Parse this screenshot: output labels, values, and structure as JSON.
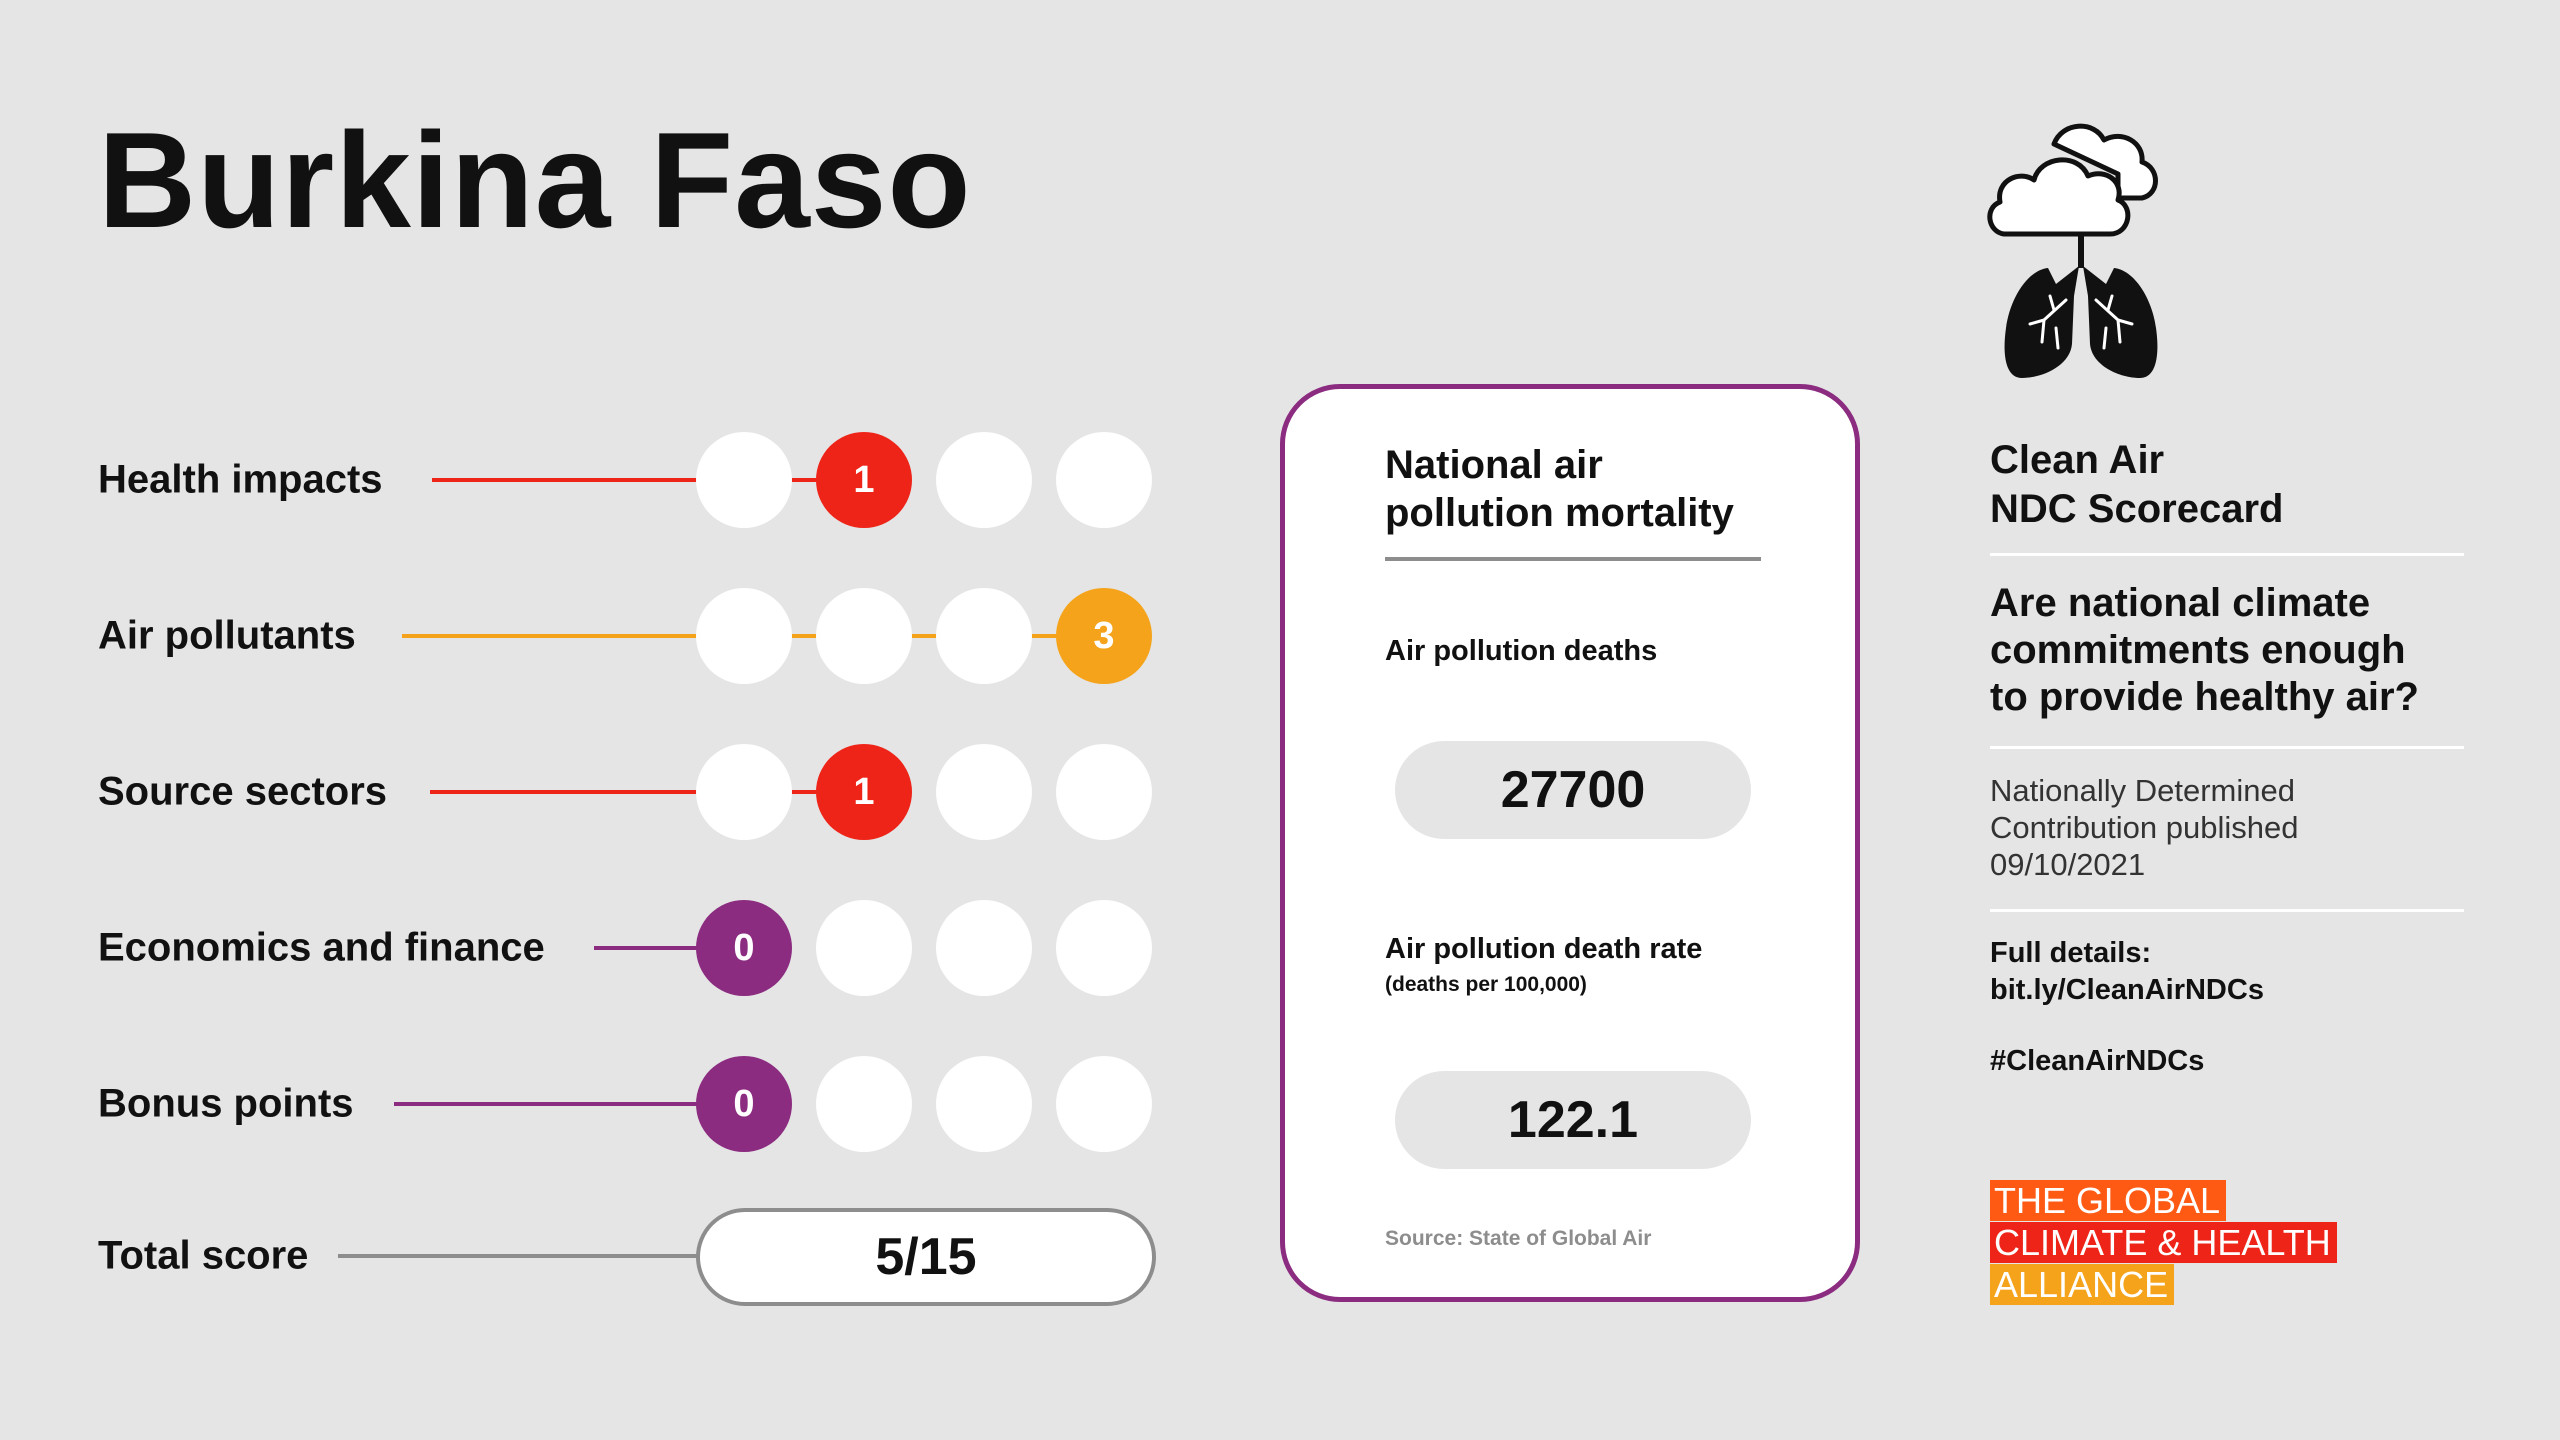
{
  "header": {
    "country": "Burkina Faso"
  },
  "scorecard": {
    "rows": [
      {
        "label": "Health impacts",
        "score": "1",
        "color": "#ee2419",
        "filled_index": 1
      },
      {
        "label": "Air pollutants",
        "score": "3",
        "color": "#f5a31a",
        "filled_index": 3
      },
      {
        "label": "Source sectors",
        "score": "1",
        "color": "#ee2419",
        "filled_index": 1
      },
      {
        "label": "Economics and finance",
        "score": "0",
        "color": "#8b2c80",
        "filled_index": 0
      },
      {
        "label": "Bonus points",
        "score": "0",
        "color": "#8b2c80",
        "filled_index": 0
      }
    ],
    "total": {
      "label": "Total score",
      "value": "5/15",
      "color": "#8d8d8d"
    }
  },
  "mortality": {
    "title_line1": "National air",
    "title_line2": "pollution mortality",
    "deaths_label": "Air pollution deaths",
    "deaths_value": "27700",
    "rate_label": "Air pollution death rate",
    "rate_sublabel": "(deaths per 100,000)",
    "rate_value": "122.1",
    "source": "Source: State of Global Air",
    "border_color": "#8b2c80"
  },
  "sidebar": {
    "title_line1": "Clean Air",
    "title_line2": "NDC Scorecard",
    "question_line1": "Are national climate",
    "question_line2": "commitments enough",
    "question_line3": "to provide healthy air?",
    "ndc_line1": "Nationally Determined",
    "ndc_line2": "Contribution published",
    "ndc_date": "09/10/2021",
    "details_label": "Full details:",
    "details_link": "bit.ly/CleanAirNDCs",
    "hashtag": "#CleanAirNDCs",
    "icon": "cloud-lungs-icon"
  },
  "org_logo": {
    "line1": "THE GLOBAL",
    "line2": "CLIMATE & HEALTH",
    "line3": "ALLIANCE",
    "colors": [
      "#ff5a14",
      "#ee2419",
      "#f5a31a"
    ]
  }
}
